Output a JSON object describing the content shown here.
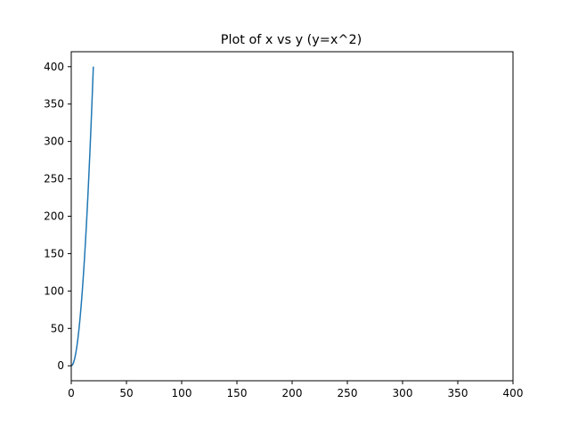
{
  "chart_data": {
    "type": "line",
    "title": "Plot of x vs y (y=x^2)",
    "xlabel": "",
    "ylabel": "",
    "xlim": [
      0,
      400
    ],
    "ylim": [
      -20,
      420
    ],
    "grid": false,
    "x_ticks": [
      0,
      50,
      100,
      150,
      200,
      250,
      300,
      350,
      400
    ],
    "y_ticks": [
      0,
      50,
      100,
      150,
      200,
      250,
      300,
      350,
      400
    ],
    "series": [
      {
        "color": "#1f77b4",
        "x": [
          0,
          1,
          2,
          3,
          4,
          5,
          6,
          7,
          8,
          9,
          10,
          11,
          12,
          13,
          14,
          15,
          16,
          17,
          18,
          19,
          20
        ],
        "y": [
          0,
          1,
          4,
          9,
          16,
          25,
          36,
          49,
          64,
          81,
          100,
          121,
          144,
          169,
          196,
          225,
          256,
          289,
          324,
          361,
          400
        ]
      }
    ]
  }
}
